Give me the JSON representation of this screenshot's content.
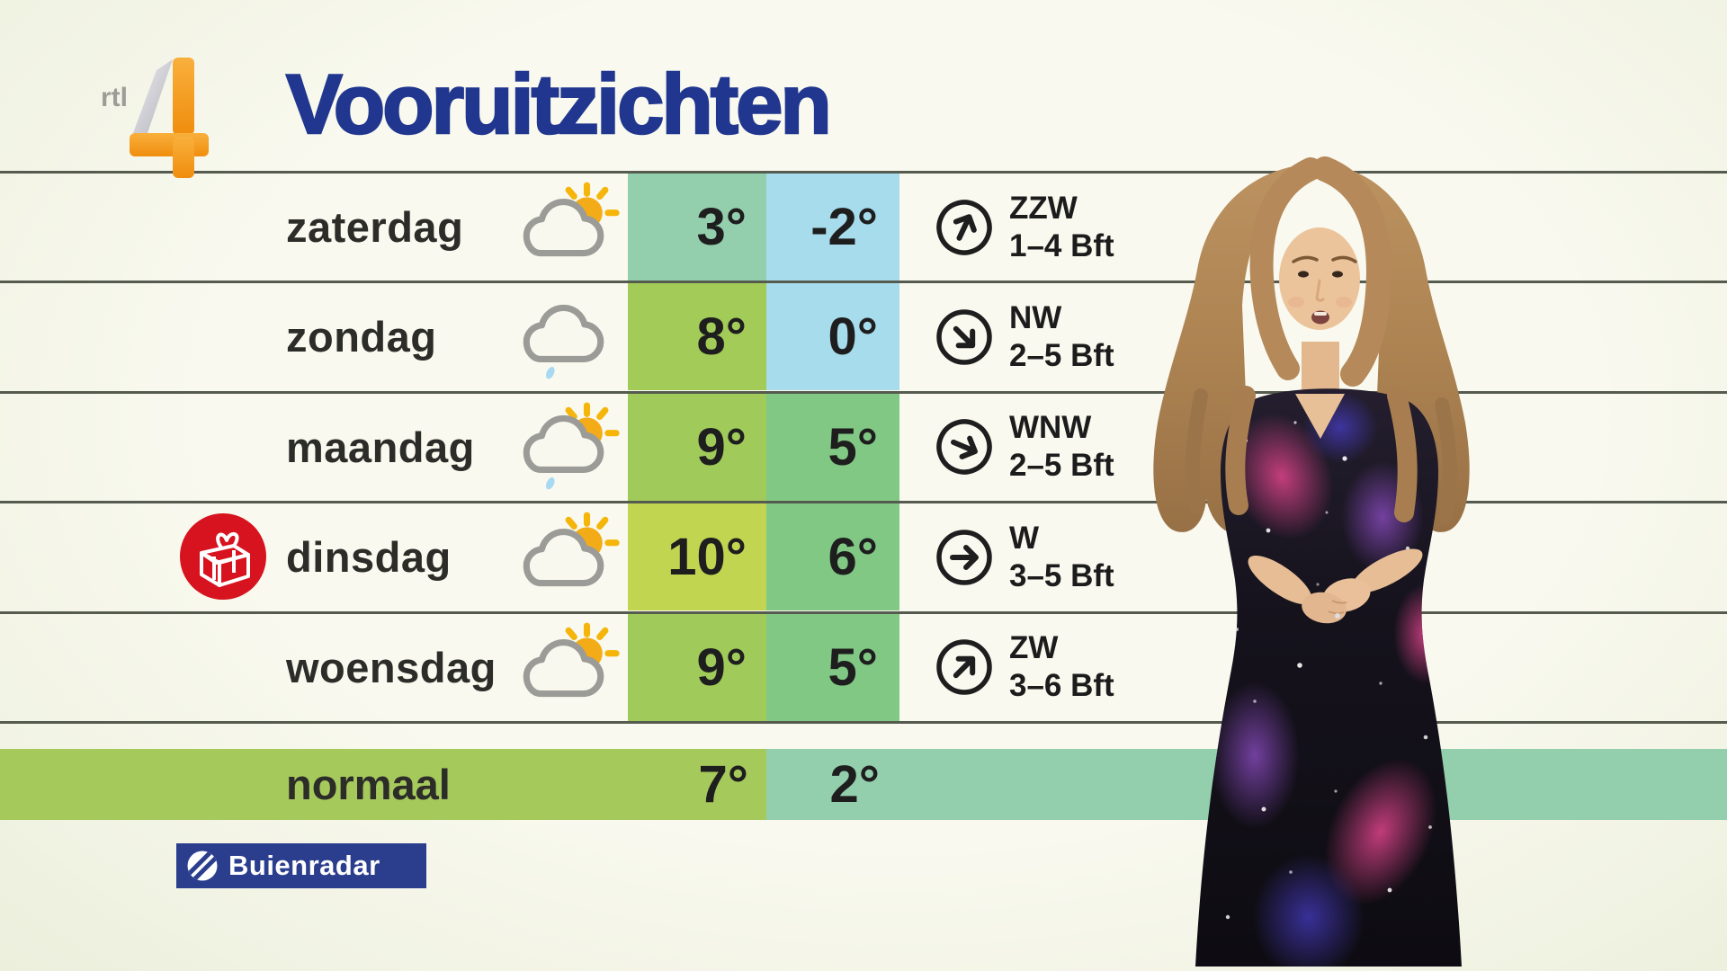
{
  "channel_logo": {
    "text": "rtl",
    "number": "4"
  },
  "title": "Vooruitzichten",
  "provider_logo": {
    "text": "Buienradar"
  },
  "table": {
    "rows": [
      {
        "day": "zaterdag",
        "icon": "sun-behind-cloud",
        "max": "3°",
        "min": "-2°",
        "wind_dir": "ZZW",
        "wind_bft": "1–4 Bft",
        "arrow_deg": 25,
        "max_bg": "#94cfad",
        "min_bg": "#a6dcec",
        "gift": false
      },
      {
        "day": "zondag",
        "icon": "cloud-light-rain",
        "max": "8°",
        "min": "0°",
        "wind_dir": "NW",
        "wind_bft": "2–5 Bft",
        "arrow_deg": 135,
        "max_bg": "#a2cb58",
        "min_bg": "#a6dcec",
        "gift": false
      },
      {
        "day": "maandag",
        "icon": "sun-behind-cloud-rain",
        "max": "9°",
        "min": "5°",
        "wind_dir": "WNW",
        "wind_bft": "2–5 Bft",
        "arrow_deg": 113,
        "max_bg": "#a0cb5a",
        "min_bg": "#81c884",
        "gift": false
      },
      {
        "day": "dinsdag",
        "icon": "sun-behind-cloud",
        "max": "10°",
        "min": "6°",
        "wind_dir": "W",
        "wind_bft": "3–5 Bft",
        "arrow_deg": 90,
        "max_bg": "#c2d551",
        "min_bg": "#81c884",
        "gift": true
      },
      {
        "day": "woensdag",
        "icon": "sun-behind-cloud",
        "max": "9°",
        "min": "5°",
        "wind_dir": "ZW",
        "wind_bft": "3–6 Bft",
        "arrow_deg": 45,
        "max_bg": "#a0cb5a",
        "min_bg": "#81c884",
        "gift": false
      }
    ],
    "normal_row": {
      "label": "normaal",
      "max": "7°",
      "min": "2°",
      "left_bg": "#a6c95c",
      "right_bg": "#93cfad"
    }
  },
  "colors": {
    "title": "#21378f",
    "background": "#f8f8ec",
    "separator": "#565b4f",
    "rtl_orange": "#f6a01b",
    "buienradar_blue": "#2b3e8e",
    "gift_red": "#d6131e"
  }
}
